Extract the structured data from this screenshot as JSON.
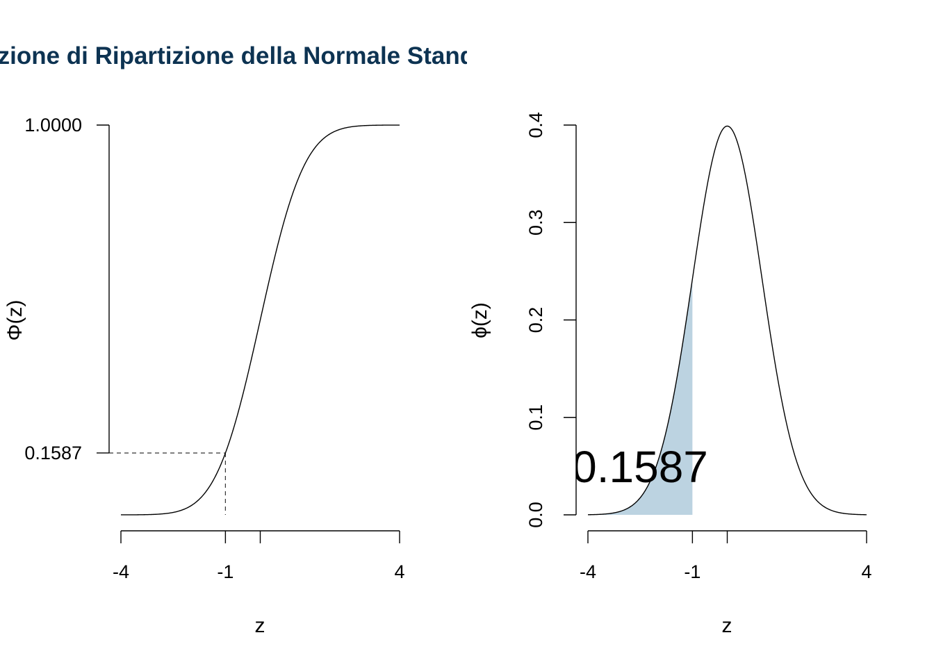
{
  "title": "Funzione di Ripartizione della Normale Standard",
  "colors": {
    "title": "#0d3352",
    "fill": "#bcd3e1",
    "line": "#000000"
  },
  "chart_data": [
    {
      "type": "line",
      "name": "cdf",
      "function": "standard normal cdf",
      "xlim": [
        -4,
        4
      ],
      "ylim": [
        0,
        1
      ],
      "xlabel": "z",
      "ylabel": "Φ(z)",
      "x_ticks": [
        -4,
        -1,
        0,
        4
      ],
      "x_tick_labels": [
        "-4",
        "-1",
        "",
        "4"
      ],
      "y_ticks": [
        0.1587,
        1.0
      ],
      "y_tick_labels": [
        "0.1587",
        "1.0000"
      ],
      "reference": {
        "z": -1,
        "p": 0.1587
      }
    },
    {
      "type": "area",
      "name": "pdf",
      "function": "standard normal pdf",
      "xlim": [
        -4,
        4
      ],
      "ylim": [
        0,
        0.4
      ],
      "xlabel": "z",
      "ylabel": "ϕ(z)",
      "x_ticks": [
        -4,
        -1,
        0,
        4
      ],
      "x_tick_labels": [
        "-4",
        "-1",
        "",
        "4"
      ],
      "y_ticks": [
        0.0,
        0.1,
        0.2,
        0.3,
        0.4
      ],
      "y_tick_labels": [
        "0.0",
        "0.1",
        "0.2",
        "0.3",
        "0.4"
      ],
      "shade_from": -4,
      "shade_to": -1,
      "annotation": "0.1587"
    }
  ]
}
